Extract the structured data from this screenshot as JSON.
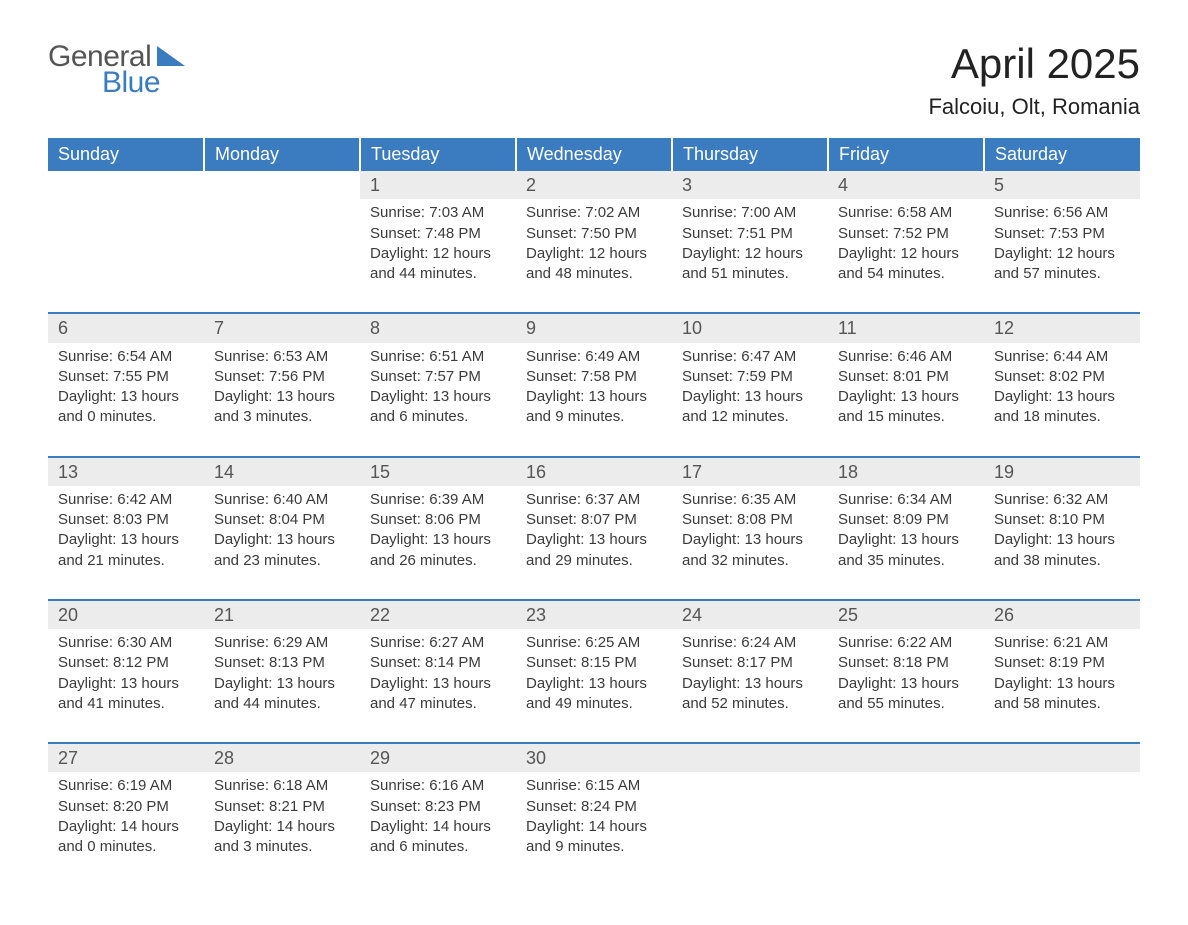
{
  "brand": {
    "word1": "General",
    "word2": "Blue"
  },
  "title": "April 2025",
  "location": "Falcoiu, Olt, Romania",
  "colors": {
    "header_bg": "#3b7bbf",
    "header_text": "#ffffff",
    "daynum_bg": "#ececec",
    "row_divider": "#3b7bbf",
    "body_text": "#3b3b3b",
    "page_bg": "#ffffff"
  },
  "day_headers": [
    "Sunday",
    "Monday",
    "Tuesday",
    "Wednesday",
    "Thursday",
    "Friday",
    "Saturday"
  ],
  "weeks": [
    [
      null,
      null,
      {
        "n": "1",
        "sr": "7:03 AM",
        "ss": "7:48 PM",
        "dh": "12",
        "dm": "44"
      },
      {
        "n": "2",
        "sr": "7:02 AM",
        "ss": "7:50 PM",
        "dh": "12",
        "dm": "48"
      },
      {
        "n": "3",
        "sr": "7:00 AM",
        "ss": "7:51 PM",
        "dh": "12",
        "dm": "51"
      },
      {
        "n": "4",
        "sr": "6:58 AM",
        "ss": "7:52 PM",
        "dh": "12",
        "dm": "54"
      },
      {
        "n": "5",
        "sr": "6:56 AM",
        "ss": "7:53 PM",
        "dh": "12",
        "dm": "57"
      }
    ],
    [
      {
        "n": "6",
        "sr": "6:54 AM",
        "ss": "7:55 PM",
        "dh": "13",
        "dm": "0"
      },
      {
        "n": "7",
        "sr": "6:53 AM",
        "ss": "7:56 PM",
        "dh": "13",
        "dm": "3"
      },
      {
        "n": "8",
        "sr": "6:51 AM",
        "ss": "7:57 PM",
        "dh": "13",
        "dm": "6"
      },
      {
        "n": "9",
        "sr": "6:49 AM",
        "ss": "7:58 PM",
        "dh": "13",
        "dm": "9"
      },
      {
        "n": "10",
        "sr": "6:47 AM",
        "ss": "7:59 PM",
        "dh": "13",
        "dm": "12"
      },
      {
        "n": "11",
        "sr": "6:46 AM",
        "ss": "8:01 PM",
        "dh": "13",
        "dm": "15"
      },
      {
        "n": "12",
        "sr": "6:44 AM",
        "ss": "8:02 PM",
        "dh": "13",
        "dm": "18"
      }
    ],
    [
      {
        "n": "13",
        "sr": "6:42 AM",
        "ss": "8:03 PM",
        "dh": "13",
        "dm": "21"
      },
      {
        "n": "14",
        "sr": "6:40 AM",
        "ss": "8:04 PM",
        "dh": "13",
        "dm": "23"
      },
      {
        "n": "15",
        "sr": "6:39 AM",
        "ss": "8:06 PM",
        "dh": "13",
        "dm": "26"
      },
      {
        "n": "16",
        "sr": "6:37 AM",
        "ss": "8:07 PM",
        "dh": "13",
        "dm": "29"
      },
      {
        "n": "17",
        "sr": "6:35 AM",
        "ss": "8:08 PM",
        "dh": "13",
        "dm": "32"
      },
      {
        "n": "18",
        "sr": "6:34 AM",
        "ss": "8:09 PM",
        "dh": "13",
        "dm": "35"
      },
      {
        "n": "19",
        "sr": "6:32 AM",
        "ss": "8:10 PM",
        "dh": "13",
        "dm": "38"
      }
    ],
    [
      {
        "n": "20",
        "sr": "6:30 AM",
        "ss": "8:12 PM",
        "dh": "13",
        "dm": "41"
      },
      {
        "n": "21",
        "sr": "6:29 AM",
        "ss": "8:13 PM",
        "dh": "13",
        "dm": "44"
      },
      {
        "n": "22",
        "sr": "6:27 AM",
        "ss": "8:14 PM",
        "dh": "13",
        "dm": "47"
      },
      {
        "n": "23",
        "sr": "6:25 AM",
        "ss": "8:15 PM",
        "dh": "13",
        "dm": "49"
      },
      {
        "n": "24",
        "sr": "6:24 AM",
        "ss": "8:17 PM",
        "dh": "13",
        "dm": "52"
      },
      {
        "n": "25",
        "sr": "6:22 AM",
        "ss": "8:18 PM",
        "dh": "13",
        "dm": "55"
      },
      {
        "n": "26",
        "sr": "6:21 AM",
        "ss": "8:19 PM",
        "dh": "13",
        "dm": "58"
      }
    ],
    [
      {
        "n": "27",
        "sr": "6:19 AM",
        "ss": "8:20 PM",
        "dh": "14",
        "dm": "0"
      },
      {
        "n": "28",
        "sr": "6:18 AM",
        "ss": "8:21 PM",
        "dh": "14",
        "dm": "3"
      },
      {
        "n": "29",
        "sr": "6:16 AM",
        "ss": "8:23 PM",
        "dh": "14",
        "dm": "6"
      },
      {
        "n": "30",
        "sr": "6:15 AM",
        "ss": "8:24 PM",
        "dh": "14",
        "dm": "9"
      },
      null,
      null,
      null
    ]
  ],
  "labels": {
    "sunrise": "Sunrise: ",
    "sunset": "Sunset: ",
    "daylight": "Daylight: ",
    "hours": " hours",
    "and": "and ",
    "minutes": " minutes."
  }
}
